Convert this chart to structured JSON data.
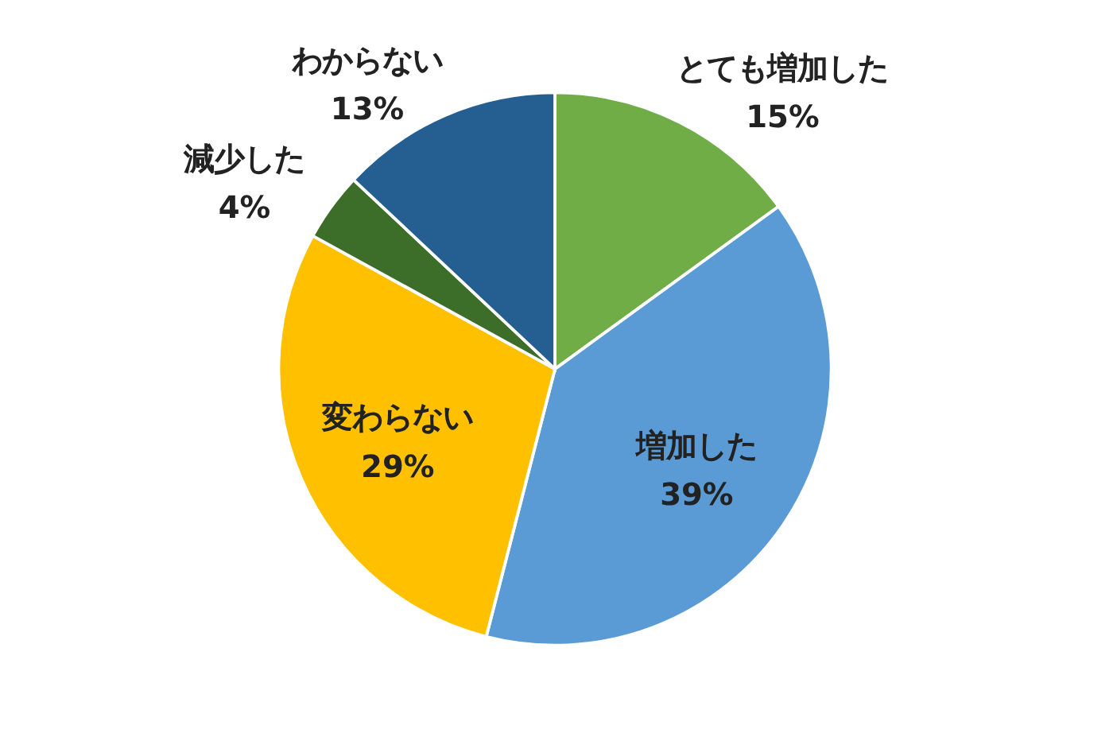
{
  "chart_data": {
    "type": "pie",
    "categories": [
      "とても増加した",
      "増加した",
      "変わらない",
      "減少した",
      "わからない"
    ],
    "values": [
      15,
      39,
      29,
      4,
      13
    ],
    "colors": [
      "#70ad47",
      "#5b9bd5",
      "#ffc000",
      "#3c6e2a",
      "#255e91"
    ],
    "value_labels": [
      "15%",
      "39%",
      "29%",
      "4%",
      "13%"
    ]
  }
}
